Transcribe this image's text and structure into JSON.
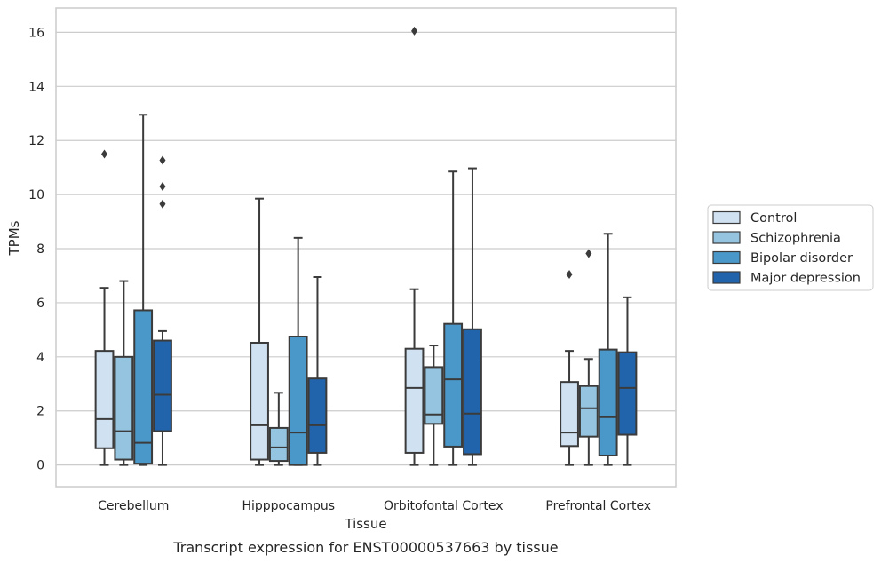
{
  "chart_data": {
    "type": "boxplot",
    "xlabel": "Tissue",
    "ylabel": "TPMs",
    "caption": "Transcript expression for ENST00000537663 by tissue",
    "ylim": [
      -0.8,
      16.9
    ],
    "yticks": [
      0,
      2,
      4,
      6,
      8,
      10,
      12,
      14,
      16
    ],
    "grid": true,
    "legend_position": "right",
    "categories": [
      "Cerebellum",
      "Hipppocampus",
      "Orbitofontal Cortex",
      "Prefrontal Cortex"
    ],
    "series": [
      {
        "name": "Control",
        "color": "#d0e1f2",
        "boxes": [
          {
            "min": 0.0,
            "q1": 0.62,
            "median": 1.7,
            "q3": 4.22,
            "max": 6.55,
            "outliers": [
              11.5
            ]
          },
          {
            "min": 0.0,
            "q1": 0.2,
            "median": 1.47,
            "q3": 4.52,
            "max": 9.85,
            "outliers": []
          },
          {
            "min": 0.0,
            "q1": 0.45,
            "median": 2.85,
            "q3": 4.3,
            "max": 6.5,
            "outliers": [
              16.05
            ]
          },
          {
            "min": 0.0,
            "q1": 0.7,
            "median": 1.2,
            "q3": 3.07,
            "max": 4.22,
            "outliers": [
              7.05
            ]
          }
        ]
      },
      {
        "name": "Schizophrenia",
        "color": "#94c4df",
        "boxes": [
          {
            "min": 0.0,
            "q1": 0.2,
            "median": 1.25,
            "q3": 4.0,
            "max": 6.8,
            "outliers": []
          },
          {
            "min": 0.0,
            "q1": 0.15,
            "median": 0.65,
            "q3": 1.37,
            "max": 2.67,
            "outliers": []
          },
          {
            "min": 0.0,
            "q1": 1.52,
            "median": 1.87,
            "q3": 3.62,
            "max": 4.42,
            "outliers": []
          },
          {
            "min": 0.0,
            "q1": 1.05,
            "median": 2.1,
            "q3": 2.92,
            "max": 3.92,
            "outliers": [
              7.82
            ]
          }
        ]
      },
      {
        "name": "Bipolar disorder",
        "color": "#4a98c9",
        "boxes": [
          {
            "min": 0.0,
            "q1": 0.05,
            "median": 0.82,
            "q3": 5.72,
            "max": 12.95,
            "outliers": []
          },
          {
            "min": 0.0,
            "q1": 0.0,
            "median": 1.2,
            "q3": 4.75,
            "max": 8.4,
            "outliers": []
          },
          {
            "min": 0.0,
            "q1": 0.68,
            "median": 3.17,
            "q3": 5.22,
            "max": 10.85,
            "outliers": []
          },
          {
            "min": 0.0,
            "q1": 0.35,
            "median": 1.77,
            "q3": 4.27,
            "max": 8.55,
            "outliers": []
          }
        ]
      },
      {
        "name": "Major depression",
        "color": "#2164ab",
        "boxes": [
          {
            "min": 0.0,
            "q1": 1.25,
            "median": 2.6,
            "q3": 4.6,
            "max": 4.95,
            "outliers": [
              9.65,
              10.3,
              11.27
            ]
          },
          {
            "min": 0.0,
            "q1": 0.45,
            "median": 1.47,
            "q3": 3.2,
            "max": 6.95,
            "outliers": []
          },
          {
            "min": 0.0,
            "q1": 0.4,
            "median": 1.9,
            "q3": 5.02,
            "max": 10.97,
            "outliers": []
          },
          {
            "min": 0.0,
            "q1": 1.12,
            "median": 2.85,
            "q3": 4.17,
            "max": 6.2,
            "outliers": []
          }
        ]
      }
    ]
  }
}
